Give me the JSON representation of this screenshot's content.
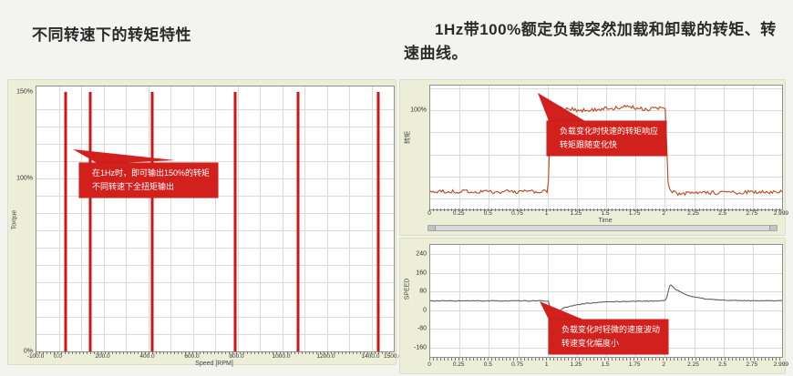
{
  "page": {
    "bg": "#f3f3f0"
  },
  "colors": {
    "accent_red": "#d2201c",
    "bar_red": "#cf1616",
    "torque_curve": "#c2451c",
    "speed_curve": "#5f5f5f",
    "panel_bg": "#edeed8",
    "grid": "#d8dcd3"
  },
  "left": {
    "title": "不同转速下的转矩特性"
  },
  "right": {
    "title": "1Hz带100%额定负载突然加载和卸载的转矩、转速曲线。"
  },
  "chart_data": [
    {
      "id": "left-torque-vs-speed",
      "type": "bar",
      "title": "不同转速下的转矩特性",
      "xlabel": "Speed [RPM]",
      "ylabel": "Torque",
      "xlim": [
        -100,
        1500
      ],
      "ylim_percent": [
        0,
        153
      ],
      "grid": "on",
      "x_grid_step": 100,
      "y_grid_step": 10,
      "xticks": {
        "values": [
          -100,
          0,
          200,
          400,
          600,
          800,
          1000,
          1200,
          1400,
          1500
        ],
        "labels": [
          "-100.0",
          "0.0",
          "200.0",
          "400.0",
          "600.0",
          "800.0",
          "1000.0",
          "1200.0",
          "1400.0",
          "1500.0"
        ]
      },
      "yticks": {
        "values": [
          150,
          100,
          0
        ],
        "labels": [
          "150%",
          "100%",
          "0%"
        ]
      },
      "bars": {
        "speeds_rpm": [
          30,
          140,
          420,
          790,
          1070,
          1430
        ],
        "torque_percent": 150
      },
      "annotation": [
        "在1Hz时，即可输出150%的转矩",
        "不同转速下全扭矩输出"
      ]
    },
    {
      "id": "right-top-torque-response",
      "type": "line",
      "xlabel": "Time",
      "ylabel": "转矩",
      "xlim": [
        0,
        3
      ],
      "ylim_percent": [
        -12,
        128
      ],
      "grid": "on",
      "y_grid_values": [
        0,
        25,
        50,
        75,
        100,
        125
      ],
      "xticks": {
        "values": [
          0,
          0.25,
          0.5,
          0.75,
          1,
          1.25,
          1.5,
          1.75,
          2,
          2.25,
          2.5,
          2.75,
          2.999
        ],
        "labels": [
          "0",
          "0.25",
          "0.5",
          "0.75",
          "1",
          "1.25",
          "1.5",
          "1.75",
          "2",
          "2.25",
          "2.5",
          "2.75",
          "2.999"
        ]
      },
      "yticks": {
        "values": [
          100
        ],
        "labels": [
          "100%"
        ]
      },
      "events": {
        "load_applied_s": 1.0,
        "load_removed_s": 2.0,
        "baseline_percent": 8,
        "loaded_percent": 102,
        "overshoot_percent": 113
      },
      "series": [
        {
          "name": "torque_percent",
          "color": "#c2451c",
          "noise": 2.2,
          "keypoints": [
            [
              0,
              8
            ],
            [
              0.98,
              8
            ],
            [
              1.005,
              8
            ],
            [
              1.03,
              113
            ],
            [
              1.06,
              96
            ],
            [
              1.12,
              102
            ],
            [
              1.3,
              100
            ],
            [
              1.5,
              102
            ],
            [
              1.7,
              104
            ],
            [
              1.85,
              101
            ],
            [
              1.98,
              103
            ],
            [
              2.005,
              102
            ],
            [
              2.03,
              10
            ],
            [
              2.1,
              6
            ],
            [
              3,
              8
            ]
          ]
        }
      ],
      "annotation": [
        "负载变化时快速的转矩响应",
        "转矩跟随变化快"
      ]
    },
    {
      "id": "right-bottom-speed-fluctuation",
      "type": "line",
      "xlabel": "",
      "ylabel": "SPEED",
      "xlim": [
        0,
        3
      ],
      "ylim": [
        -200,
        280
      ],
      "grid": "on",
      "y_grid_values": [
        240,
        160,
        80,
        0,
        -80,
        -160
      ],
      "xticks": {
        "values": [
          0,
          0.25,
          0.5,
          0.75,
          1,
          1.25,
          1.5,
          1.75,
          2,
          2.25,
          2.5,
          2.75,
          2.999
        ],
        "labels": [
          "0",
          "0.25",
          "0.5",
          "0.75",
          "1",
          "1.25",
          "1.5",
          "1.75",
          "2",
          "2.25",
          "2.5",
          "2.75",
          "2.999"
        ]
      },
      "yticks": {
        "values": [
          240,
          160,
          80,
          0,
          -80,
          -160
        ],
        "labels": [
          "240",
          "160",
          "80",
          "0",
          "-80",
          "-160"
        ]
      },
      "events": {
        "dip_at_s": 1.0,
        "dip_to": -42,
        "spike_at_s": 2.0,
        "spike_to": 112,
        "baseline": 40
      },
      "series": [
        {
          "name": "speed_rpm",
          "color": "#5f5f5f",
          "noise": 1.5,
          "keypoints": [
            [
              0,
              40
            ],
            [
              0.97,
              40
            ],
            [
              1.01,
              38
            ],
            [
              1.045,
              -42
            ],
            [
              1.09,
              -5
            ],
            [
              1.15,
              12
            ],
            [
              1.3,
              28
            ],
            [
              1.5,
              36
            ],
            [
              1.7,
              38
            ],
            [
              1.95,
              40
            ],
            [
              2.01,
              42
            ],
            [
              2.045,
              112
            ],
            [
              2.09,
              90
            ],
            [
              2.2,
              62
            ],
            [
              2.35,
              48
            ],
            [
              2.55,
              42
            ],
            [
              3,
              40
            ]
          ]
        }
      ],
      "annotation": [
        "负载变化时轻微的速度波动",
        "转速变化幅度小"
      ]
    }
  ]
}
